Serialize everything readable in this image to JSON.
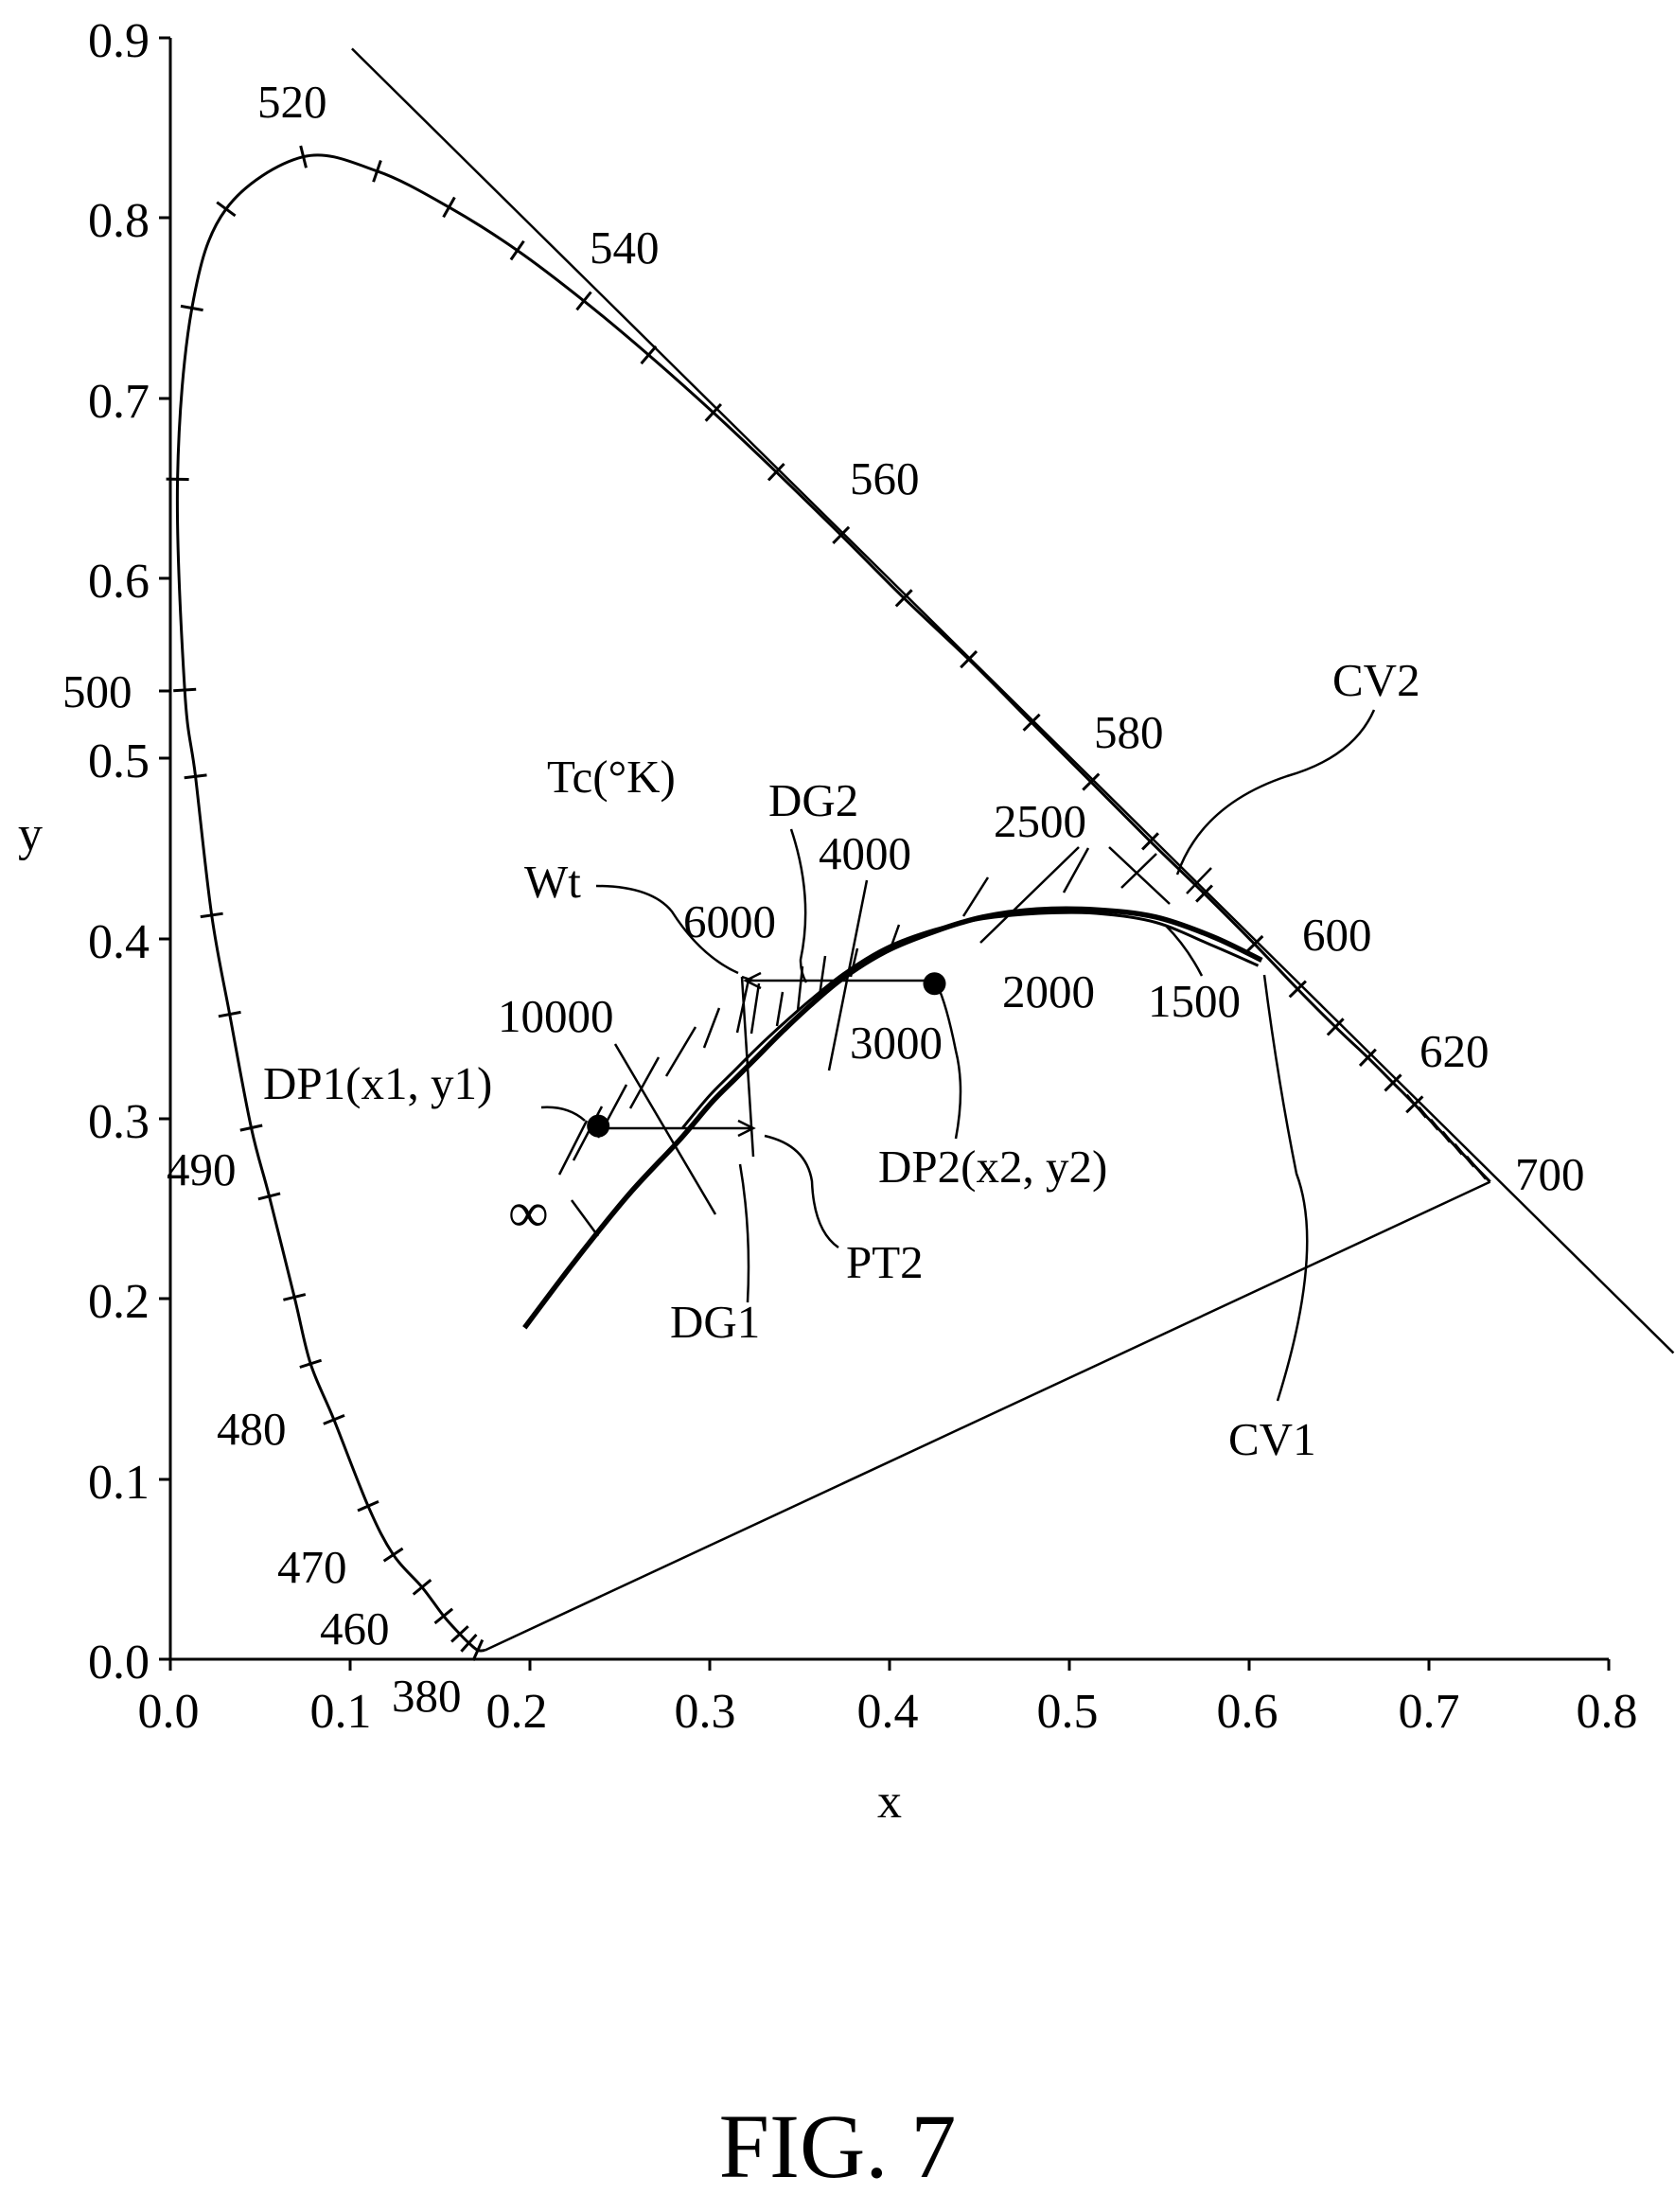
{
  "chart_data": {
    "type": "diagram",
    "xlabel": "x",
    "ylabel": "y",
    "xlim": [
      0.0,
      0.8
    ],
    "ylim": [
      0.0,
      0.9
    ],
    "x_ticks": [
      "0.0",
      "0.1",
      "0.2",
      "0.3",
      "0.4",
      "0.5",
      "0.6",
      "0.7",
      "0.8"
    ],
    "y_ticks": [
      "0.0",
      "0.1",
      "0.2",
      "0.3",
      "0.4",
      "0.5",
      "0.6",
      "0.7",
      "0.8",
      "0.9"
    ],
    "grid": false,
    "spectral_locus": {
      "points": [
        [
          0.175,
          0.005
        ],
        [
          0.171,
          0.005
        ],
        [
          0.166,
          0.009
        ],
        [
          0.161,
          0.014
        ],
        [
          0.152,
          0.024
        ],
        [
          0.14,
          0.04
        ],
        [
          0.124,
          0.058
        ],
        [
          0.11,
          0.085
        ],
        [
          0.091,
          0.133
        ],
        [
          0.078,
          0.164
        ],
        [
          0.069,
          0.201
        ],
        [
          0.055,
          0.257
        ],
        [
          0.045,
          0.295
        ],
        [
          0.033,
          0.358
        ],
        [
          0.023,
          0.413
        ],
        [
          0.014,
          0.49
        ],
        [
          0.008,
          0.538
        ],
        [
          0.004,
          0.655
        ],
        [
          0.012,
          0.75
        ],
        [
          0.031,
          0.805
        ],
        [
          0.074,
          0.834
        ],
        [
          0.115,
          0.826
        ],
        [
          0.155,
          0.806
        ],
        [
          0.193,
          0.782
        ],
        [
          0.23,
          0.754
        ],
        [
          0.266,
          0.724
        ],
        [
          0.302,
          0.692
        ],
        [
          0.337,
          0.659
        ],
        [
          0.373,
          0.624
        ],
        [
          0.408,
          0.589
        ],
        [
          0.444,
          0.555
        ],
        [
          0.479,
          0.52
        ],
        [
          0.512,
          0.487
        ],
        [
          0.545,
          0.454
        ],
        [
          0.575,
          0.425
        ],
        [
          0.603,
          0.397
        ],
        [
          0.627,
          0.372
        ],
        [
          0.648,
          0.351
        ],
        [
          0.666,
          0.334
        ],
        [
          0.68,
          0.32
        ],
        [
          0.692,
          0.308
        ],
        [
          0.734,
          0.265
        ]
      ],
      "purple_line": [
        [
          0.734,
          0.265
        ],
        [
          0.175,
          0.005
        ]
      ],
      "wavelength_labels": [
        {
          "text": "380",
          "x": 0.175,
          "y": 0.005
        },
        {
          "text": "460",
          "x": 0.144,
          "y": 0.03
        },
        {
          "text": "470",
          "x": 0.124,
          "y": 0.058
        },
        {
          "text": "480",
          "x": 0.091,
          "y": 0.133
        },
        {
          "text": "490",
          "x": 0.045,
          "y": 0.295
        },
        {
          "text": "500",
          "x": 0.008,
          "y": 0.538
        },
        {
          "text": "520",
          "x": 0.074,
          "y": 0.834
        },
        {
          "text": "540",
          "x": 0.23,
          "y": 0.754
        },
        {
          "text": "560",
          "x": 0.373,
          "y": 0.624
        },
        {
          "text": "580",
          "x": 0.512,
          "y": 0.487
        },
        {
          "text": "600",
          "x": 0.627,
          "y": 0.372
        },
        {
          "text": "620",
          "x": 0.692,
          "y": 0.308
        },
        {
          "text": "700",
          "x": 0.734,
          "y": 0.265
        }
      ]
    },
    "tangent_line": [
      [
        0.101,
        0.894
      ],
      [
        0.836,
        0.17
      ]
    ],
    "series": [
      {
        "name": "CV1",
        "points": [
          [
            0.285,
            0.295
          ],
          [
            0.3,
            0.313
          ],
          [
            0.314,
            0.327
          ],
          [
            0.326,
            0.339
          ],
          [
            0.34,
            0.352
          ],
          [
            0.356,
            0.366
          ],
          [
            0.375,
            0.381
          ],
          [
            0.398,
            0.395
          ],
          [
            0.425,
            0.405
          ],
          [
            0.452,
            0.411
          ],
          [
            0.483,
            0.414
          ],
          [
            0.515,
            0.414
          ],
          [
            0.548,
            0.409
          ],
          [
            0.58,
            0.396
          ],
          [
            0.605,
            0.385
          ]
        ]
      },
      {
        "name": "CV2",
        "points": [
          [
            0.197,
            0.184
          ],
          [
            0.225,
            0.221
          ],
          [
            0.255,
            0.258
          ],
          [
            0.283,
            0.288
          ],
          [
            0.301,
            0.309
          ],
          [
            0.315,
            0.323
          ],
          [
            0.327,
            0.335
          ],
          [
            0.341,
            0.349
          ],
          [
            0.356,
            0.363
          ],
          [
            0.374,
            0.378
          ],
          [
            0.398,
            0.393
          ],
          [
            0.425,
            0.404
          ],
          [
            0.452,
            0.412
          ],
          [
            0.482,
            0.416
          ],
          [
            0.515,
            0.416
          ],
          [
            0.548,
            0.412
          ],
          [
            0.58,
            0.401
          ],
          [
            0.607,
            0.388
          ]
        ]
      }
    ],
    "isotherm_labels": [
      "10000",
      "6000",
      "4000",
      "3000",
      "2500",
      "2000",
      "1500",
      "∞"
    ],
    "points": [
      {
        "label": "DP1(x1, y1)",
        "x": 0.238,
        "y": 0.296
      },
      {
        "label": "DP2(x2, y2)",
        "x": 0.425,
        "y": 0.375
      }
    ],
    "annotations": [
      "Tc(°K)",
      "Wt",
      "DG1",
      "DG2",
      "PT2",
      "CV1",
      "CV2"
    ]
  },
  "caption": "FIG. 7"
}
